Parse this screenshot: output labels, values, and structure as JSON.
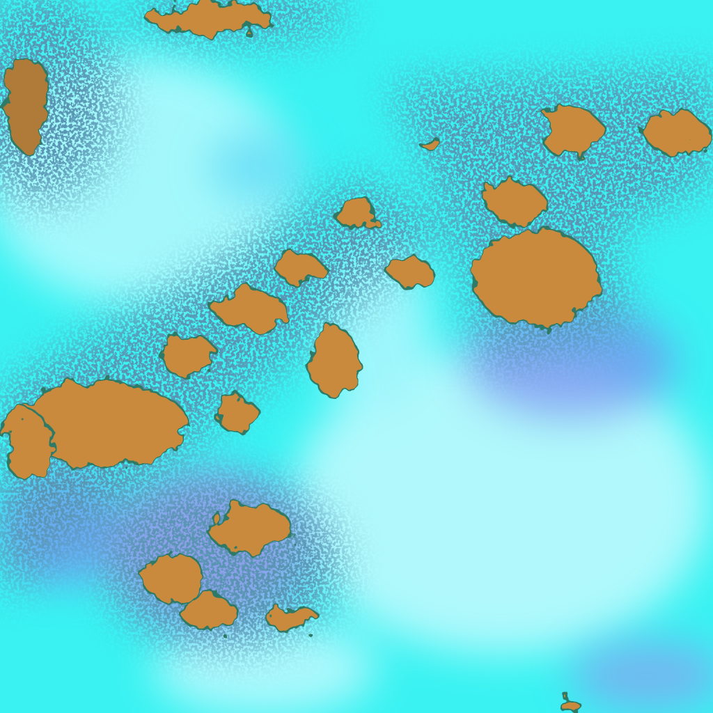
{
  "image": {
    "kind": "false-color satellite imagery",
    "colors": {
      "cloud_cyan": "#3af2f2",
      "bright_cloud": "#d8fbff",
      "shadow_blue": "#7a8cf0",
      "violet_haze": "#b07ee8",
      "land_orange": "#c98a3c",
      "edge_dark": "#1a4a6a",
      "vegetation_green": "#2f8a6a"
    }
  }
}
